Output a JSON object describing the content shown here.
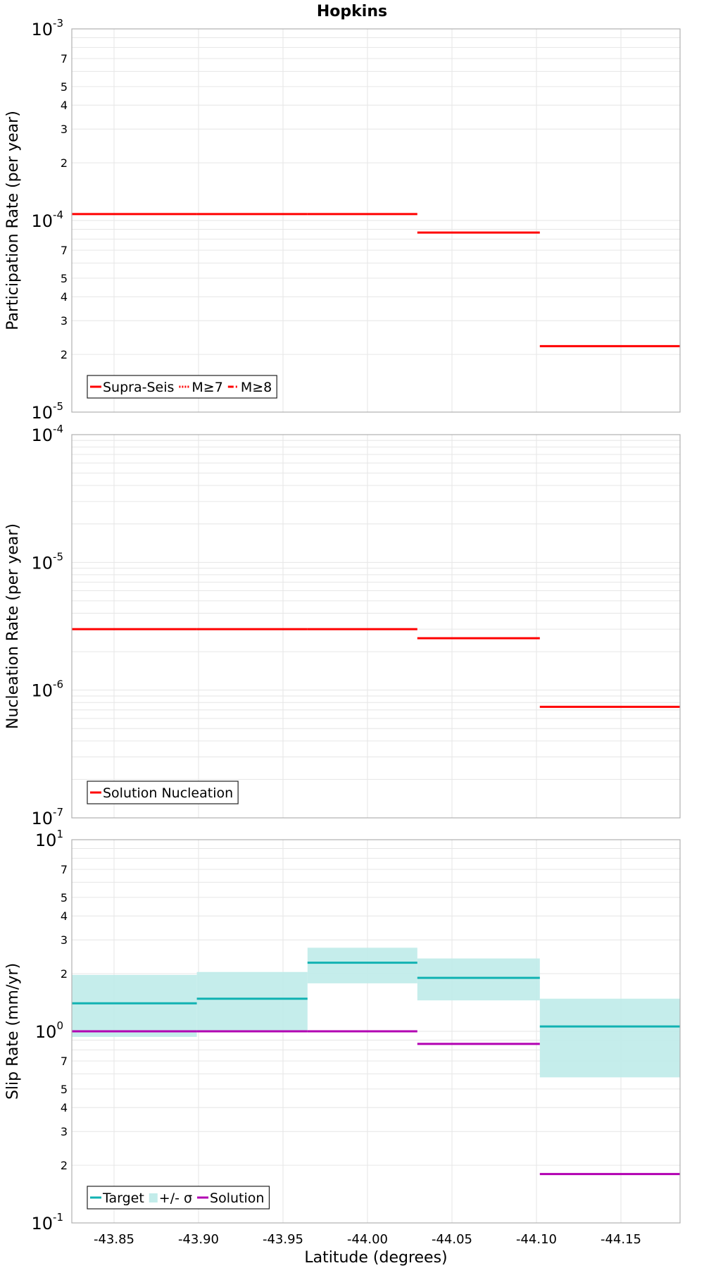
{
  "title": "Hopkins",
  "colors": {
    "red": "#ff0000",
    "target": "#11b2b2",
    "band": "#c2ecea",
    "solution": "#b200b2",
    "grid": "#e6e6e6",
    "frame": "#b0b0b0"
  },
  "chart_data": [
    {
      "type": "line",
      "ylabel": "Participation Rate (per year)",
      "yscale": "log",
      "ylim": [
        1e-05,
        0.001
      ],
      "xlim": [
        -43.825,
        -44.185
      ],
      "legend": {
        "position": "bottom-left",
        "entries": [
          {
            "label": "Supra-Seis",
            "style": "solid",
            "color": "#ff0000"
          },
          {
            "label": "M≥7",
            "style": "dotted",
            "color": "#ff0000"
          },
          {
            "label": "M≥8",
            "style": "dashdot",
            "color": "#ff0000"
          }
        ]
      },
      "series": [
        {
          "name": "Supra-Seis",
          "style": "solid",
          "color": "#ff0000",
          "segments": [
            {
              "x": [
                -43.825,
                -43.899
              ],
              "y": 0.000108
            },
            {
              "x": [
                -43.899,
                -43.9645
              ],
              "y": 0.000108
            },
            {
              "x": [
                -43.9645,
                -44.0295
              ],
              "y": 0.000108
            },
            {
              "x": [
                -44.0295,
                -44.102
              ],
              "y": 8.65e-05
            },
            {
              "x": [
                -44.102,
                -44.185
              ],
              "y": 2.21e-05
            }
          ]
        }
      ]
    },
    {
      "type": "line",
      "ylabel": "Nucleation Rate (per year)",
      "yscale": "log",
      "ylim": [
        1e-07,
        0.0001
      ],
      "xlim": [
        -43.825,
        -44.185
      ],
      "legend": {
        "position": "bottom-left",
        "entries": [
          {
            "label": "Solution Nucleation",
            "style": "solid",
            "color": "#ff0000"
          }
        ]
      },
      "series": [
        {
          "name": "Solution Nucleation",
          "style": "solid",
          "color": "#ff0000",
          "segments": [
            {
              "x": [
                -43.825,
                -43.899
              ],
              "y": 3e-06
            },
            {
              "x": [
                -43.899,
                -43.9645
              ],
              "y": 3e-06
            },
            {
              "x": [
                -43.9645,
                -44.0295
              ],
              "y": 3e-06
            },
            {
              "x": [
                -44.0295,
                -44.102
              ],
              "y": 2.55e-06
            },
            {
              "x": [
                -44.102,
                -44.185
              ],
              "y": 7.4e-07
            }
          ]
        }
      ]
    },
    {
      "type": "line",
      "ylabel": "Slip Rate (mm/yr)",
      "xlabel": "Latitude (degrees)",
      "yscale": "log",
      "ylim": [
        0.1,
        10
      ],
      "xlim": [
        -43.825,
        -44.185
      ],
      "xticks": [
        "-43.85",
        "-43.90",
        "-43.95",
        "-44.00",
        "-44.05",
        "-44.10",
        "-44.15"
      ],
      "legend": {
        "position": "bottom-left",
        "entries": [
          {
            "label": "Target",
            "style": "solid",
            "color": "#11b2b2"
          },
          {
            "label": "+/- σ",
            "style": "band",
            "color": "#c2ecea"
          },
          {
            "label": "Solution",
            "style": "solid",
            "color": "#b200b2"
          }
        ]
      },
      "series": [
        {
          "name": "Target",
          "style": "solid",
          "color": "#11b2b2",
          "segments": [
            {
              "x": [
                -43.825,
                -43.899
              ],
              "y": 1.4,
              "lo": 0.935,
              "hi": 1.97
            },
            {
              "x": [
                -43.899,
                -43.9645
              ],
              "y": 1.48,
              "lo": 1.0,
              "hi": 2.04
            },
            {
              "x": [
                -43.9645,
                -44.0295
              ],
              "y": 2.28,
              "lo": 1.78,
              "hi": 2.73
            },
            {
              "x": [
                -44.0295,
                -44.102
              ],
              "y": 1.9,
              "lo": 1.45,
              "hi": 2.4
            },
            {
              "x": [
                -44.102,
                -44.185
              ],
              "y": 1.06,
              "lo": 0.575,
              "hi": 1.48
            }
          ]
        },
        {
          "name": "Solution",
          "style": "solid",
          "color": "#b200b2",
          "segments": [
            {
              "x": [
                -43.825,
                -43.899
              ],
              "y": 1.0
            },
            {
              "x": [
                -43.899,
                -43.9645
              ],
              "y": 1.0
            },
            {
              "x": [
                -43.9645,
                -44.0295
              ],
              "y": 1.0
            },
            {
              "x": [
                -44.0295,
                -44.102
              ],
              "y": 0.86
            },
            {
              "x": [
                -44.102,
                -44.185
              ],
              "y": 0.18
            }
          ]
        }
      ]
    }
  ]
}
